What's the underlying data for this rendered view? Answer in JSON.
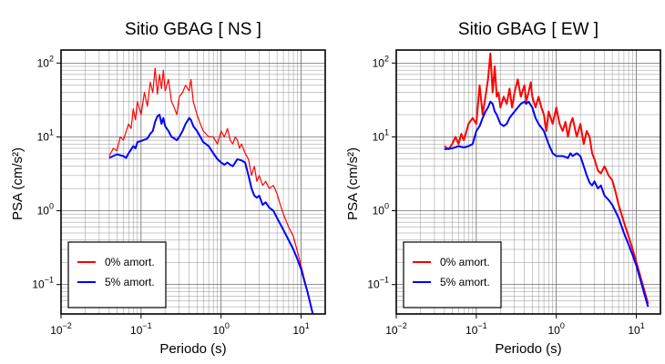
{
  "chart_data": [
    {
      "type": "line",
      "title": "Sitio GBAG [ NS ]",
      "xlabel": "Periodo (s)",
      "ylabel": "PSA (cm/s²)",
      "xscale": "log",
      "yscale": "log",
      "xlim": [
        0.01,
        20
      ],
      "ylim": [
        0.04,
        150
      ],
      "grid": true,
      "legend_position": "bottom-left",
      "x_ticks": [
        {
          "v": 0.01,
          "base": "10",
          "exp": "−2"
        },
        {
          "v": 0.1,
          "base": "10",
          "exp": "−1"
        },
        {
          "v": 1,
          "base": "10",
          "exp": "0"
        },
        {
          "v": 10,
          "base": "10",
          "exp": "1"
        }
      ],
      "y_ticks": [
        {
          "v": 0.1,
          "base": "10",
          "exp": "−1"
        },
        {
          "v": 1,
          "base": "10",
          "exp": "0"
        },
        {
          "v": 10,
          "base": "10",
          "exp": "1"
        },
        {
          "v": 100,
          "base": "10",
          "exp": "2"
        }
      ],
      "series": [
        {
          "name": "0% amort.",
          "color": "#ff0000",
          "points": [
            [
              0.04,
              5.5
            ],
            [
              0.045,
              7
            ],
            [
              0.05,
              6.5
            ],
            [
              0.055,
              10
            ],
            [
              0.06,
              9
            ],
            [
              0.07,
              15
            ],
            [
              0.075,
              13
            ],
            [
              0.08,
              24
            ],
            [
              0.085,
              17
            ],
            [
              0.09,
              30
            ],
            [
              0.1,
              20
            ],
            [
              0.11,
              40
            ],
            [
              0.12,
              26
            ],
            [
              0.13,
              55
            ],
            [
              0.14,
              40
            ],
            [
              0.15,
              85
            ],
            [
              0.16,
              38
            ],
            [
              0.17,
              70
            ],
            [
              0.18,
              45
            ],
            [
              0.19,
              80
            ],
            [
              0.2,
              42
            ],
            [
              0.22,
              60
            ],
            [
              0.24,
              30
            ],
            [
              0.26,
              25
            ],
            [
              0.28,
              20
            ],
            [
              0.3,
              35
            ],
            [
              0.33,
              40
            ],
            [
              0.36,
              50
            ],
            [
              0.4,
              42
            ],
            [
              0.42,
              60
            ],
            [
              0.45,
              30
            ],
            [
              0.5,
              20
            ],
            [
              0.55,
              15
            ],
            [
              0.6,
              12
            ],
            [
              0.7,
              10
            ],
            [
              0.8,
              10
            ],
            [
              0.9,
              8
            ],
            [
              1.0,
              12
            ],
            [
              1.1,
              10
            ],
            [
              1.2,
              13
            ],
            [
              1.3,
              9
            ],
            [
              1.4,
              8
            ],
            [
              1.5,
              10
            ],
            [
              1.6,
              9
            ],
            [
              1.7,
              7
            ],
            [
              1.8,
              8
            ],
            [
              2.0,
              6
            ],
            [
              2.2,
              5
            ],
            [
              2.4,
              3
            ],
            [
              2.6,
              4
            ],
            [
              2.8,
              2.5
            ],
            [
              3.0,
              3
            ],
            [
              3.3,
              2.2
            ],
            [
              3.6,
              2.5
            ],
            [
              4.0,
              2
            ],
            [
              4.5,
              2.2
            ],
            [
              5.0,
              1.7
            ],
            [
              5.5,
              1.2
            ],
            [
              6.0,
              0.9
            ],
            [
              7.0,
              0.6
            ],
            [
              8.0,
              0.45
            ],
            [
              9.0,
              0.28
            ],
            [
              10.0,
              0.18
            ],
            [
              12.0,
              0.08
            ],
            [
              14.0,
              0.04
            ]
          ]
        },
        {
          "name": "5% amort.",
          "color": "#0000ff",
          "points": [
            [
              0.04,
              5.2
            ],
            [
              0.05,
              5.8
            ],
            [
              0.06,
              5.5
            ],
            [
              0.065,
              5.2
            ],
            [
              0.07,
              6
            ],
            [
              0.08,
              7.5
            ],
            [
              0.085,
              7
            ],
            [
              0.09,
              8.5
            ],
            [
              0.1,
              8.8
            ],
            [
              0.12,
              9.5
            ],
            [
              0.13,
              11
            ],
            [
              0.14,
              12
            ],
            [
              0.15,
              16
            ],
            [
              0.16,
              19
            ],
            [
              0.17,
              20
            ],
            [
              0.18,
              15
            ],
            [
              0.19,
              18
            ],
            [
              0.2,
              14
            ],
            [
              0.22,
              12
            ],
            [
              0.24,
              10
            ],
            [
              0.26,
              9.5
            ],
            [
              0.28,
              9
            ],
            [
              0.3,
              10
            ],
            [
              0.33,
              12
            ],
            [
              0.36,
              15
            ],
            [
              0.4,
              18
            ],
            [
              0.42,
              17
            ],
            [
              0.45,
              14
            ],
            [
              0.5,
              12
            ],
            [
              0.55,
              10
            ],
            [
              0.6,
              8.5
            ],
            [
              0.7,
              7.5
            ],
            [
              0.8,
              6
            ],
            [
              0.9,
              5
            ],
            [
              1.0,
              4.5
            ],
            [
              1.1,
              4.2
            ],
            [
              1.2,
              4.5
            ],
            [
              1.3,
              4.2
            ],
            [
              1.4,
              4
            ],
            [
              1.5,
              4.5
            ],
            [
              1.6,
              5
            ],
            [
              1.8,
              4.8
            ],
            [
              2.0,
              4.5
            ],
            [
              2.2,
              3
            ],
            [
              2.4,
              2
            ],
            [
              2.6,
              1.6
            ],
            [
              2.8,
              1.5
            ],
            [
              3.0,
              1.6
            ],
            [
              3.3,
              1.2
            ],
            [
              3.6,
              1.3
            ],
            [
              4.0,
              1.1
            ],
            [
              4.5,
              1
            ],
            [
              5.0,
              0.8
            ],
            [
              6.0,
              0.55
            ],
            [
              7.0,
              0.4
            ],
            [
              8.0,
              0.3
            ],
            [
              9.0,
              0.22
            ],
            [
              10.0,
              0.16
            ],
            [
              12.0,
              0.08
            ],
            [
              14.0,
              0.04
            ]
          ]
        }
      ]
    },
    {
      "type": "line",
      "title": "Sitio GBAG [ EW ]",
      "xlabel": "Periodo (s)",
      "ylabel": "PSA (cm/s²)",
      "xscale": "log",
      "yscale": "log",
      "xlim": [
        0.01,
        20
      ],
      "ylim": [
        0.04,
        150
      ],
      "grid": true,
      "legend_position": "bottom-left",
      "x_ticks": [
        {
          "v": 0.01,
          "base": "10",
          "exp": "−2"
        },
        {
          "v": 0.1,
          "base": "10",
          "exp": "−1"
        },
        {
          "v": 1,
          "base": "10",
          "exp": "0"
        },
        {
          "v": 10,
          "base": "10",
          "exp": "1"
        }
      ],
      "y_ticks": [
        {
          "v": 0.1,
          "base": "10",
          "exp": "−1"
        },
        {
          "v": 1,
          "base": "10",
          "exp": "0"
        },
        {
          "v": 10,
          "base": "10",
          "exp": "1"
        },
        {
          "v": 100,
          "base": "10",
          "exp": "2"
        }
      ],
      "series": [
        {
          "name": "0% amort.",
          "color": "#ff0000",
          "points": [
            [
              0.04,
              7.5
            ],
            [
              0.045,
              6.8
            ],
            [
              0.05,
              8
            ],
            [
              0.055,
              10
            ],
            [
              0.06,
              8
            ],
            [
              0.065,
              11
            ],
            [
              0.07,
              9
            ],
            [
              0.08,
              15
            ],
            [
              0.09,
              18
            ],
            [
              0.1,
              15
            ],
            [
              0.11,
              50
            ],
            [
              0.12,
              20
            ],
            [
              0.13,
              35
            ],
            [
              0.14,
              60
            ],
            [
              0.15,
              135
            ],
            [
              0.16,
              40
            ],
            [
              0.17,
              90
            ],
            [
              0.18,
              35
            ],
            [
              0.19,
              40
            ],
            [
              0.2,
              25
            ],
            [
              0.22,
              35
            ],
            [
              0.24,
              28
            ],
            [
              0.26,
              45
            ],
            [
              0.28,
              25
            ],
            [
              0.3,
              40
            ],
            [
              0.33,
              60
            ],
            [
              0.36,
              35
            ],
            [
              0.4,
              50
            ],
            [
              0.42,
              30
            ],
            [
              0.45,
              40
            ],
            [
              0.48,
              55
            ],
            [
              0.5,
              35
            ],
            [
              0.55,
              25
            ],
            [
              0.6,
              35
            ],
            [
              0.65,
              25
            ],
            [
              0.7,
              20
            ],
            [
              0.75,
              12
            ],
            [
              0.8,
              22
            ],
            [
              0.9,
              15
            ],
            [
              1.0,
              25
            ],
            [
              1.1,
              15
            ],
            [
              1.2,
              12
            ],
            [
              1.3,
              16
            ],
            [
              1.4,
              10
            ],
            [
              1.5,
              15
            ],
            [
              1.6,
              18
            ],
            [
              1.8,
              10
            ],
            [
              2.0,
              15
            ],
            [
              2.2,
              8
            ],
            [
              2.4,
              12
            ],
            [
              2.6,
              10
            ],
            [
              2.8,
              6
            ],
            [
              3.0,
              5
            ],
            [
              3.3,
              3.5
            ],
            [
              3.6,
              3.2
            ],
            [
              4.0,
              4
            ],
            [
              4.5,
              3
            ],
            [
              5.0,
              2.6
            ],
            [
              5.5,
              1.8
            ],
            [
              6.0,
              1.2
            ],
            [
              7.0,
              0.7
            ],
            [
              8.0,
              0.45
            ],
            [
              9.0,
              0.3
            ],
            [
              10.0,
              0.2
            ],
            [
              12.0,
              0.1
            ],
            [
              14.0,
              0.055
            ]
          ]
        },
        {
          "name": "5% amort.",
          "color": "#0000ff",
          "points": [
            [
              0.04,
              6.8
            ],
            [
              0.05,
              7
            ],
            [
              0.06,
              7.5
            ],
            [
              0.07,
              7.2
            ],
            [
              0.08,
              7.5
            ],
            [
              0.09,
              8
            ],
            [
              0.1,
              12
            ],
            [
              0.11,
              14
            ],
            [
              0.12,
              18
            ],
            [
              0.13,
              22
            ],
            [
              0.14,
              25
            ],
            [
              0.15,
              30
            ],
            [
              0.16,
              28
            ],
            [
              0.17,
              22
            ],
            [
              0.18,
              20
            ],
            [
              0.2,
              15
            ],
            [
              0.22,
              14
            ],
            [
              0.24,
              15
            ],
            [
              0.26,
              18
            ],
            [
              0.28,
              20
            ],
            [
              0.3,
              22
            ],
            [
              0.33,
              25
            ],
            [
              0.36,
              28
            ],
            [
              0.4,
              30
            ],
            [
              0.42,
              28
            ],
            [
              0.45,
              30
            ],
            [
              0.5,
              25
            ],
            [
              0.55,
              18
            ],
            [
              0.6,
              15
            ],
            [
              0.7,
              12
            ],
            [
              0.8,
              8
            ],
            [
              0.9,
              6
            ],
            [
              1.0,
              5.5
            ],
            [
              1.2,
              5.5
            ],
            [
              1.4,
              5.2
            ],
            [
              1.5,
              6
            ],
            [
              1.6,
              5.5
            ],
            [
              1.8,
              6
            ],
            [
              2.0,
              5.5
            ],
            [
              2.2,
              4
            ],
            [
              2.4,
              3
            ],
            [
              2.6,
              2.4
            ],
            [
              2.8,
              2.2
            ],
            [
              3.0,
              2.5
            ],
            [
              3.3,
              2
            ],
            [
              3.6,
              2.2
            ],
            [
              4.0,
              1.6
            ],
            [
              4.5,
              1.4
            ],
            [
              5.0,
              1.2
            ],
            [
              6.0,
              0.8
            ],
            [
              7.0,
              0.5
            ],
            [
              8.0,
              0.35
            ],
            [
              9.0,
              0.25
            ],
            [
              10.0,
              0.18
            ],
            [
              12.0,
              0.09
            ],
            [
              14.0,
              0.05
            ]
          ]
        }
      ]
    }
  ]
}
